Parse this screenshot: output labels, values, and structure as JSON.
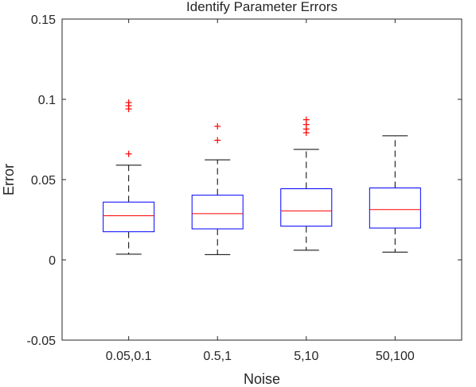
{
  "chart_data": {
    "type": "box",
    "title": "Identify Parameter Errors",
    "xlabel": "Noise",
    "ylabel": "Error",
    "ylim": [
      -0.05,
      0.15
    ],
    "yticks": [
      -0.05,
      0,
      0.05,
      0.1,
      0.15
    ],
    "ytick_labels": [
      "-0.05",
      "0",
      "0.05",
      "0.1",
      "0.15"
    ],
    "categories": [
      "0.05,0.1",
      "0.5,1",
      "5,10",
      "50,100"
    ],
    "boxes": [
      {
        "whisker_low": 0.0035,
        "q1": 0.0175,
        "median": 0.0275,
        "q3": 0.036,
        "whisker_high": 0.059,
        "outliers": [
          0.066,
          0.094,
          0.096,
          0.098
        ]
      },
      {
        "whisker_low": 0.0033,
        "q1": 0.0193,
        "median": 0.0288,
        "q3": 0.0403,
        "whisker_high": 0.0623,
        "outliers": [
          0.0745,
          0.0832
        ]
      },
      {
        "whisker_low": 0.006,
        "q1": 0.021,
        "median": 0.0305,
        "q3": 0.0443,
        "whisker_high": 0.0688,
        "outliers": [
          0.0792,
          0.0815,
          0.0843,
          0.0873
        ]
      },
      {
        "whisker_low": 0.0048,
        "q1": 0.0198,
        "median": 0.0313,
        "q3": 0.0448,
        "whisker_high": 0.0773,
        "outliers": []
      }
    ],
    "colors": {
      "box": "#0000ff",
      "median": "#ff0000",
      "whisker": "#000000",
      "outlier": "#ff0000",
      "axis": "#262626"
    },
    "grid": false,
    "legend": "none"
  }
}
